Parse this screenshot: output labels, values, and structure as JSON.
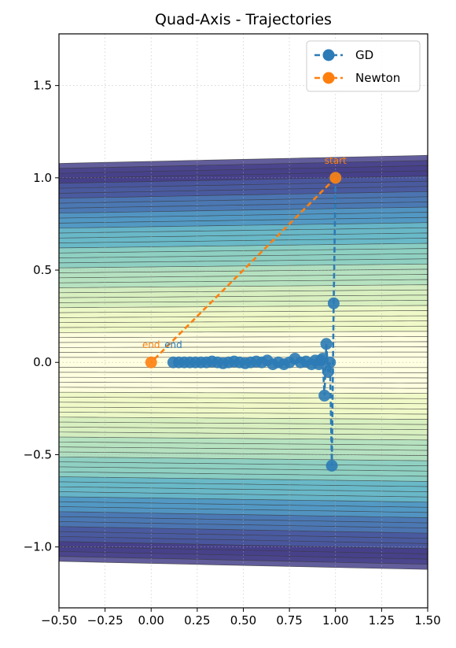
{
  "chart_data": {
    "type": "line",
    "title": "Quad-Axis - Trajectories",
    "xlabel": "",
    "ylabel": "",
    "xlim": [
      -0.5,
      1.5
    ],
    "ylim": [
      -1.33,
      1.78
    ],
    "grid": true,
    "legend_position": "top-right",
    "x_ticks": [
      -0.5,
      -0.25,
      0.0,
      0.25,
      0.5,
      0.75,
      1.0,
      1.25,
      1.5
    ],
    "x_tick_labels": [
      "−0.50",
      "−0.25",
      "0.00",
      "0.25",
      "0.50",
      "0.75",
      "1.00",
      "1.25",
      "1.50"
    ],
    "y_ticks": [
      -1.0,
      -0.5,
      0.0,
      0.5,
      1.0,
      1.5
    ],
    "y_tick_labels": [
      "−1.0",
      "−0.5",
      "0.0",
      "0.5",
      "1.0",
      "1.5"
    ],
    "contour": {
      "y_extent": [
        -1.1,
        1.1
      ],
      "x_extent": [
        -0.5,
        1.5
      ],
      "colormap": [
        "#ffffe0",
        "#f0f9c8",
        "#d8efc0",
        "#b6e2c0",
        "#8fd0c2",
        "#6ab8c8",
        "#5299c4",
        "#4b79b4",
        "#4a5aa0",
        "#47418a"
      ]
    },
    "series": [
      {
        "name": "GD",
        "color": "#2c7bb6",
        "x": [
          1.0,
          0.99,
          0.98,
          0.97,
          0.96,
          0.95,
          0.94,
          0.93,
          0.92,
          0.91,
          0.89,
          0.87,
          0.84,
          0.81,
          0.78,
          0.75,
          0.72,
          0.69,
          0.66,
          0.63,
          0.6,
          0.57,
          0.54,
          0.51,
          0.48,
          0.45,
          0.42,
          0.39,
          0.36,
          0.33,
          0.3,
          0.27,
          0.24,
          0.21,
          0.18,
          0.15,
          0.12
        ],
        "y": [
          1.0,
          0.32,
          -0.56,
          0.0,
          -0.05,
          0.1,
          -0.18,
          0.02,
          0.01,
          -0.01,
          0.01,
          -0.01,
          0.005,
          0.0,
          0.02,
          0.0,
          -0.01,
          0.0,
          -0.01,
          0.01,
          0.0,
          0.005,
          0.0,
          -0.005,
          0.0,
          0.005,
          0.0,
          -0.005,
          0.0,
          0.005,
          0.0,
          0.0,
          0.0,
          0.0,
          0.0,
          0.0,
          0.0
        ]
      },
      {
        "name": "Newton",
        "color": "#ff7f0e",
        "x": [
          1.0,
          0.0
        ],
        "y": [
          1.0,
          0.0
        ]
      }
    ],
    "annotations": [
      {
        "text": "start",
        "x": 1.0,
        "y": 1.0,
        "color": "#ff7f0e"
      },
      {
        "text": "end",
        "x": 0.0,
        "y": 0.0,
        "color": "#ff7f0e"
      },
      {
        "text": "end",
        "x": 0.12,
        "y": 0.0,
        "color": "#2c7bb6"
      }
    ]
  }
}
